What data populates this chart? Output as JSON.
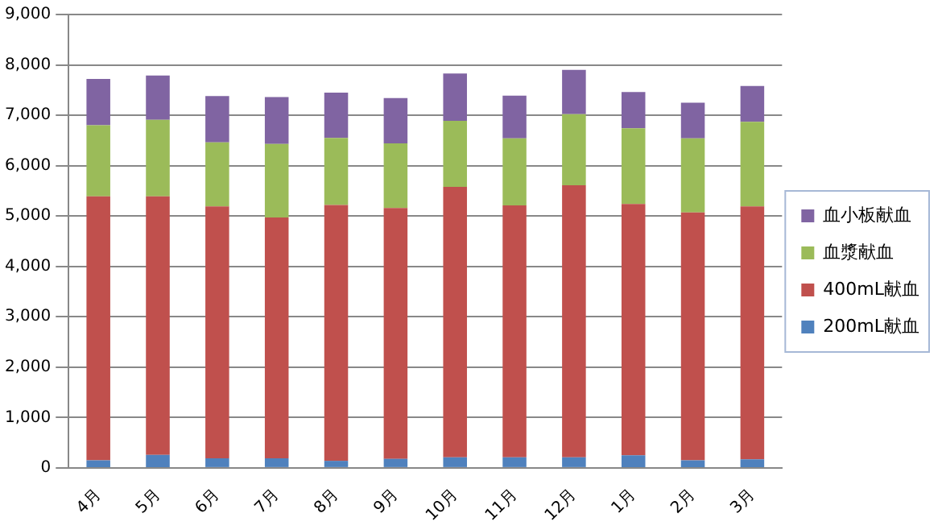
{
  "chart_data": {
    "type": "bar",
    "stacked": true,
    "categories": [
      "4月",
      "5月",
      "6月",
      "7月",
      "8月",
      "9月",
      "10月",
      "11月",
      "12月",
      "1月",
      "2月",
      "3月"
    ],
    "series": [
      {
        "name": "200mL献血",
        "color": "#4f81bd",
        "values": [
          150,
          260,
          190,
          190,
          140,
          180,
          210,
          210,
          210,
          250,
          150,
          170
        ]
      },
      {
        "name": "400mL献血",
        "color": "#c0504d",
        "values": [
          5240,
          5130,
          5000,
          4780,
          5080,
          4980,
          5370,
          5000,
          5400,
          4990,
          4920,
          5020
        ]
      },
      {
        "name": "血漿献血",
        "color": "#9bbb59",
        "values": [
          1410,
          1520,
          1270,
          1460,
          1330,
          1280,
          1310,
          1330,
          1410,
          1500,
          1470,
          1680
        ]
      },
      {
        "name": "血小板献血",
        "color": "#8064a2",
        "values": [
          920,
          880,
          920,
          930,
          900,
          900,
          940,
          850,
          880,
          720,
          710,
          710
        ]
      }
    ],
    "ylim": [
      0,
      9000
    ],
    "yticks": [
      0,
      {
        "value": 1000,
        "label": "1,000"
      },
      {
        "value": 2000,
        "label": "2,000"
      },
      {
        "value": 3000,
        "label": "3,000"
      },
      {
        "value": 4000,
        "label": "4,000"
      },
      {
        "value": 5000,
        "label": "5,000"
      },
      {
        "value": 6000,
        "label": "6,000"
      },
      {
        "value": 7000,
        "label": "7,000"
      },
      {
        "value": 8000,
        "label": "8,000"
      },
      {
        "value": 9000,
        "label": "9,000"
      }
    ],
    "grid": "y",
    "legend": "right"
  }
}
